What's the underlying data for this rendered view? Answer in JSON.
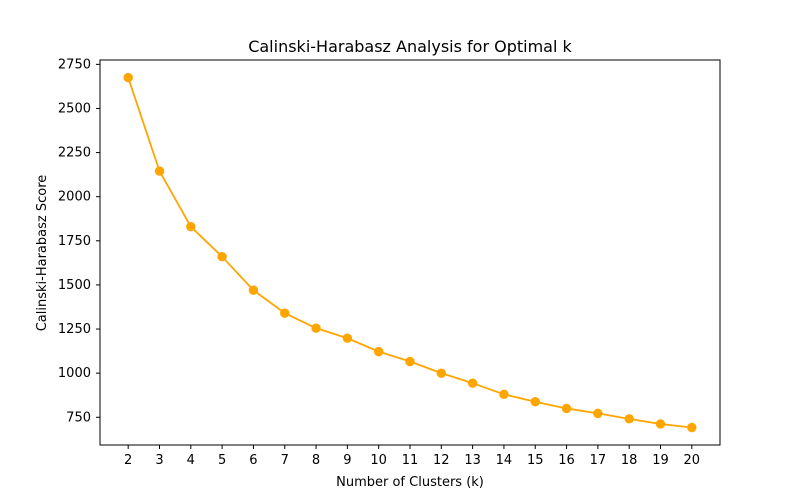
{
  "chart_data": {
    "type": "line",
    "title": "Calinski-Harabasz Analysis for Optimal k",
    "xlabel": "Number of Clusters (k)",
    "ylabel": "Calinski-Harabasz Score",
    "x": [
      2,
      3,
      4,
      5,
      6,
      7,
      8,
      9,
      10,
      11,
      12,
      13,
      14,
      15,
      16,
      17,
      18,
      19,
      20
    ],
    "series": [
      {
        "values": [
          2675,
          2145,
          1830,
          1660,
          1470,
          1340,
          1255,
          1198,
          1122,
          1066,
          1000,
          943,
          880,
          838,
          800,
          772,
          741,
          712,
          692
        ],
        "color": "#ffa500",
        "marker": "circle"
      }
    ],
    "xticks": [
      "2",
      "3",
      "4",
      "5",
      "6",
      "7",
      "8",
      "9",
      "10",
      "11",
      "12",
      "13",
      "14",
      "15",
      "16",
      "17",
      "18",
      "19",
      "20"
    ],
    "yticks": [
      750,
      1000,
      1250,
      1500,
      1750,
      2000,
      2250,
      2500,
      2750
    ],
    "ytick_labels": [
      "750",
      "1000",
      "1250",
      "1500",
      "1750",
      "2000",
      "2250",
      "2500",
      "2750"
    ],
    "xlim": [
      1.1,
      20.9
    ],
    "ylim": [
      592.85,
      2774.65
    ],
    "grid": false,
    "legend": "none"
  }
}
